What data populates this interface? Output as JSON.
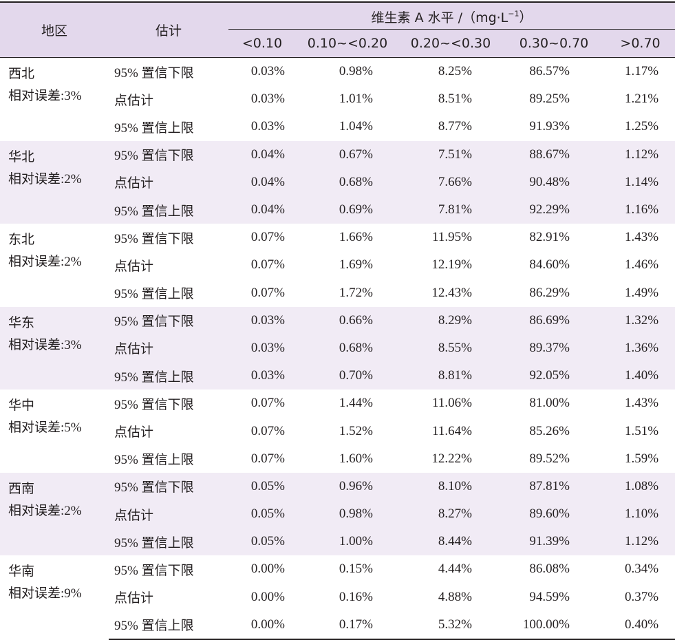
{
  "header": {
    "region_label": "地区",
    "estimate_label": "估计",
    "group_label": "维生素 A 水平 /（mg·L",
    "group_exp": "−1",
    "group_close": "）",
    "columns": [
      "<0.10",
      "0.10~<0.20",
      "0.20~<0.30",
      "0.30~0.70",
      ">0.70"
    ]
  },
  "groups": [
    {
      "region": "西北",
      "error": "相对误差:3%",
      "shaded": false,
      "rows": [
        {
          "est": "95% 置信下限",
          "values": [
            "0.03%",
            "0.98%",
            "8.25%",
            "86.57%",
            "1.17%"
          ]
        },
        {
          "est": "点估计",
          "values": [
            "0.03%",
            "1.01%",
            "8.51%",
            "89.25%",
            "1.21%"
          ]
        },
        {
          "est": "95% 置信上限",
          "values": [
            "0.03%",
            "1.04%",
            "8.77%",
            "91.93%",
            "1.25%"
          ]
        }
      ]
    },
    {
      "region": "华北",
      "error": "相对误差:2%",
      "shaded": true,
      "rows": [
        {
          "est": "95% 置信下限",
          "values": [
            "0.04%",
            "0.67%",
            "7.51%",
            "88.67%",
            "1.12%"
          ]
        },
        {
          "est": "点估计",
          "values": [
            "0.04%",
            "0.68%",
            "7.66%",
            "90.48%",
            "1.14%"
          ]
        },
        {
          "est": "95% 置信上限",
          "values": [
            "0.04%",
            "0.69%",
            "7.81%",
            "92.29%",
            "1.16%"
          ]
        }
      ]
    },
    {
      "region": "东北",
      "error": "相对误差:2%",
      "shaded": false,
      "rows": [
        {
          "est": "95% 置信下限",
          "values": [
            "0.07%",
            "1.66%",
            "11.95%",
            "82.91%",
            "1.43%"
          ]
        },
        {
          "est": "点估计",
          "values": [
            "0.07%",
            "1.69%",
            "12.19%",
            "84.60%",
            "1.46%"
          ]
        },
        {
          "est": "95% 置信上限",
          "values": [
            "0.07%",
            "1.72%",
            "12.43%",
            "86.29%",
            "1.49%"
          ]
        }
      ]
    },
    {
      "region": "华东",
      "error": "相对误差:3%",
      "shaded": true,
      "rows": [
        {
          "est": "95% 置信下限",
          "values": [
            "0.03%",
            "0.66%",
            "8.29%",
            "86.69%",
            "1.32%"
          ]
        },
        {
          "est": "点估计",
          "values": [
            "0.03%",
            "0.68%",
            "8.55%",
            "89.37%",
            "1.36%"
          ]
        },
        {
          "est": "95% 置信上限",
          "values": [
            "0.03%",
            "0.70%",
            "8.81%",
            "92.05%",
            "1.40%"
          ]
        }
      ]
    },
    {
      "region": "华中",
      "error": "相对误差:5%",
      "shaded": false,
      "rows": [
        {
          "est": "95% 置信下限",
          "values": [
            "0.07%",
            "1.44%",
            "11.06%",
            "81.00%",
            "1.43%"
          ]
        },
        {
          "est": "点估计",
          "values": [
            "0.07%",
            "1.52%",
            "11.64%",
            "85.26%",
            "1.51%"
          ]
        },
        {
          "est": "95% 置信上限",
          "values": [
            "0.07%",
            "1.60%",
            "12.22%",
            "89.52%",
            "1.59%"
          ]
        }
      ]
    },
    {
      "region": "西南",
      "error": "相对误差:2%",
      "shaded": true,
      "rows": [
        {
          "est": "95% 置信下限",
          "values": [
            "0.05%",
            "0.96%",
            "8.10%",
            "87.81%",
            "1.08%"
          ]
        },
        {
          "est": "点估计",
          "values": [
            "0.05%",
            "0.98%",
            "8.27%",
            "89.60%",
            "1.10%"
          ]
        },
        {
          "est": "95% 置信上限",
          "values": [
            "0.05%",
            "1.00%",
            "8.44%",
            "91.39%",
            "1.12%"
          ]
        }
      ]
    },
    {
      "region": "华南",
      "error": "相对误差:9%",
      "shaded": false,
      "rows": [
        {
          "est": "95% 置信下限",
          "values": [
            "0.00%",
            "0.15%",
            "4.44%",
            "86.08%",
            "0.34%"
          ]
        },
        {
          "est": "点估计",
          "values": [
            "0.00%",
            "0.16%",
            "4.88%",
            "94.59%",
            "0.37%"
          ]
        },
        {
          "est": "95% 置信上限",
          "values": [
            "0.00%",
            "0.17%",
            "5.32%",
            "100.00%",
            "0.40%"
          ]
        }
      ]
    }
  ]
}
